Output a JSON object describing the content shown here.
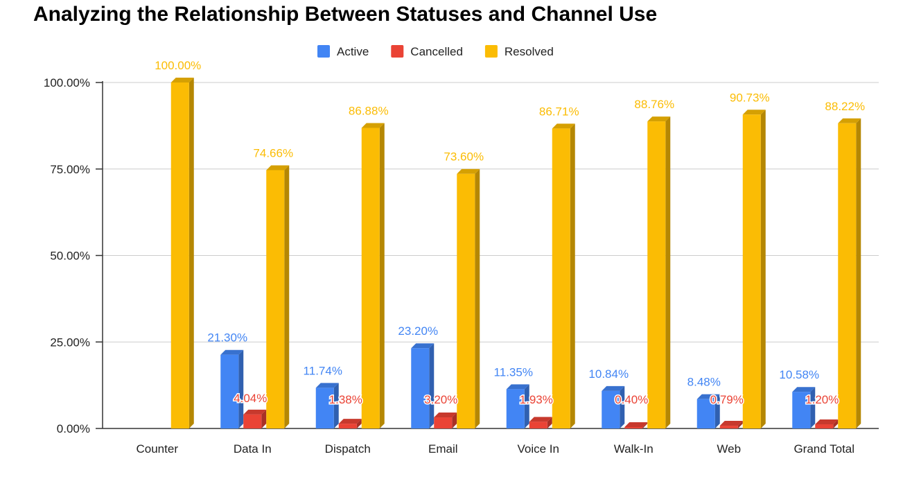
{
  "chart_data": {
    "type": "bar",
    "title": "Analyzing the Relationship Between Statuses and Channel Use",
    "xlabel": "",
    "ylabel": "",
    "ylim": [
      0,
      1
    ],
    "yticks": [
      "0.00%",
      "25.00%",
      "50.00%",
      "75.00%",
      "100.00%"
    ],
    "grid": true,
    "legend_position": "top",
    "categories": [
      "Counter",
      "Data In",
      "Dispatch",
      "Email",
      "Voice In",
      "Walk-In",
      "Web",
      "Grand Total"
    ],
    "series": [
      {
        "name": "Active",
        "color": "#4285F4",
        "values": [
          null,
          0.213,
          0.1174,
          0.232,
          0.1135,
          0.1084,
          0.0848,
          0.1058
        ],
        "labels": [
          "",
          "21.30%",
          "11.74%",
          "23.20%",
          "11.35%",
          "10.84%",
          "8.48%",
          "10.58%"
        ]
      },
      {
        "name": "Cancelled",
        "color": "#EA4335",
        "values": [
          null,
          0.0404,
          0.0138,
          0.032,
          0.0193,
          0.004,
          0.0079,
          0.012
        ],
        "labels": [
          "",
          "4.04%",
          "1.38%",
          "3.20%",
          "1.93%",
          "0.40%",
          "0.79%",
          "1.20%"
        ]
      },
      {
        "name": "Resolved",
        "color": "#FBBC04",
        "values": [
          1.0,
          0.7466,
          0.8688,
          0.736,
          0.8671,
          0.8876,
          0.9073,
          0.8822
        ],
        "labels": [
          "100.00%",
          "74.66%",
          "86.88%",
          "73.60%",
          "86.71%",
          "88.76%",
          "90.73%",
          "88.22%"
        ]
      }
    ]
  }
}
